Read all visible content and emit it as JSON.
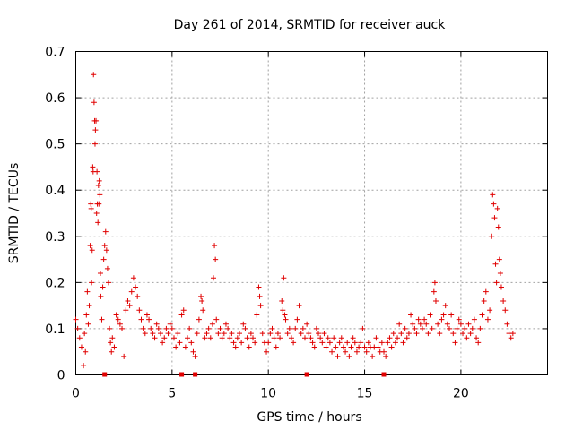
{
  "chart_data": {
    "type": "scatter",
    "title": "Day 261 of 2014, SRMTID for receiver auck",
    "xlabel": "GPS time / hours",
    "ylabel": "SRMTID / TECUs",
    "xlim": [
      0,
      24.5
    ],
    "ylim": [
      0,
      0.7
    ],
    "xticks": [
      "0",
      "5",
      "10",
      "15",
      "20"
    ],
    "yticks": [
      "0",
      "0.1",
      "0.2",
      "0.3",
      "0.4",
      "0.5",
      "0.6",
      "0.7"
    ],
    "grid": true,
    "marker": "plus",
    "color": "#e00000",
    "series": [
      {
        "name": "SRMTID",
        "points": [
          [
            0.0,
            0.12
          ],
          [
            0.1,
            0.1
          ],
          [
            0.2,
            0.08
          ],
          [
            0.3,
            0.06
          ],
          [
            0.4,
            0.02
          ],
          [
            0.45,
            0.09
          ],
          [
            0.5,
            0.05
          ],
          [
            0.55,
            0.13
          ],
          [
            0.6,
            0.18
          ],
          [
            0.65,
            0.11
          ],
          [
            0.7,
            0.15
          ],
          [
            0.75,
            0.28
          ],
          [
            0.78,
            0.37
          ],
          [
            0.8,
            0.36
          ],
          [
            0.82,
            0.2
          ],
          [
            0.85,
            0.27
          ],
          [
            0.88,
            0.45
          ],
          [
            0.9,
            0.44
          ],
          [
            0.92,
            0.65
          ],
          [
            0.95,
            0.59
          ],
          [
            0.98,
            0.55
          ],
          [
            1.0,
            0.5
          ],
          [
            1.02,
            0.53
          ],
          [
            1.05,
            0.55
          ],
          [
            1.08,
            0.35
          ],
          [
            1.1,
            0.44
          ],
          [
            1.12,
            0.37
          ],
          [
            1.15,
            0.33
          ],
          [
            1.18,
            0.41
          ],
          [
            1.2,
            0.37
          ],
          [
            1.22,
            0.42
          ],
          [
            1.25,
            0.39
          ],
          [
            1.28,
            0.22
          ],
          [
            1.3,
            0.17
          ],
          [
            1.35,
            0.12
          ],
          [
            1.4,
            0.19
          ],
          [
            1.45,
            0.25
          ],
          [
            1.5,
            0.28
          ],
          [
            1.55,
            0.31
          ],
          [
            1.6,
            0.27
          ],
          [
            1.65,
            0.23
          ],
          [
            1.7,
            0.2
          ],
          [
            1.75,
            0.1
          ],
          [
            1.8,
            0.07
          ],
          [
            1.85,
            0.05
          ],
          [
            1.9,
            0.08
          ],
          [
            2.0,
            0.06
          ],
          [
            2.1,
            0.13
          ],
          [
            2.2,
            0.12
          ],
          [
            2.3,
            0.11
          ],
          [
            2.4,
            0.1
          ],
          [
            2.5,
            0.04
          ],
          [
            2.6,
            0.14
          ],
          [
            2.7,
            0.16
          ],
          [
            2.8,
            0.15
          ],
          [
            2.9,
            0.18
          ],
          [
            3.0,
            0.21
          ],
          [
            3.1,
            0.19
          ],
          [
            3.2,
            0.17
          ],
          [
            3.3,
            0.14
          ],
          [
            3.4,
            0.12
          ],
          [
            3.5,
            0.1
          ],
          [
            3.6,
            0.09
          ],
          [
            3.7,
            0.13
          ],
          [
            3.8,
            0.12
          ],
          [
            3.9,
            0.1
          ],
          [
            4.0,
            0.09
          ],
          [
            4.1,
            0.08
          ],
          [
            4.2,
            0.11
          ],
          [
            4.3,
            0.1
          ],
          [
            4.4,
            0.09
          ],
          [
            4.5,
            0.07
          ],
          [
            4.6,
            0.08
          ],
          [
            4.7,
            0.1
          ],
          [
            4.8,
            0.09
          ],
          [
            4.9,
            0.11
          ],
          [
            5.0,
            0.1
          ],
          [
            5.1,
            0.08
          ],
          [
            5.2,
            0.06
          ],
          [
            5.3,
            0.09
          ],
          [
            5.4,
            0.07
          ],
          [
            5.5,
            0.13
          ],
          [
            5.6,
            0.14
          ],
          [
            5.7,
            0.06
          ],
          [
            5.8,
            0.08
          ],
          [
            5.9,
            0.1
          ],
          [
            6.0,
            0.07
          ],
          [
            6.1,
            0.05
          ],
          [
            6.2,
            0.04
          ],
          [
            6.3,
            0.09
          ],
          [
            6.4,
            0.12
          ],
          [
            6.5,
            0.17
          ],
          [
            6.55,
            0.16
          ],
          [
            6.6,
            0.14
          ],
          [
            6.7,
            0.08
          ],
          [
            6.8,
            0.09
          ],
          [
            6.9,
            0.1
          ],
          [
            7.0,
            0.08
          ],
          [
            7.1,
            0.11
          ],
          [
            7.15,
            0.21
          ],
          [
            7.2,
            0.28
          ],
          [
            7.25,
            0.25
          ],
          [
            7.3,
            0.12
          ],
          [
            7.4,
            0.09
          ],
          [
            7.5,
            0.1
          ],
          [
            7.6,
            0.08
          ],
          [
            7.7,
            0.09
          ],
          [
            7.8,
            0.11
          ],
          [
            7.9,
            0.1
          ],
          [
            8.0,
            0.08
          ],
          [
            8.1,
            0.09
          ],
          [
            8.2,
            0.07
          ],
          [
            8.3,
            0.06
          ],
          [
            8.4,
            0.08
          ],
          [
            8.5,
            0.09
          ],
          [
            8.6,
            0.07
          ],
          [
            8.7,
            0.11
          ],
          [
            8.8,
            0.1
          ],
          [
            8.9,
            0.08
          ],
          [
            9.0,
            0.06
          ],
          [
            9.1,
            0.09
          ],
          [
            9.2,
            0.08
          ],
          [
            9.3,
            0.07
          ],
          [
            9.4,
            0.13
          ],
          [
            9.5,
            0.19
          ],
          [
            9.55,
            0.17
          ],
          [
            9.6,
            0.15
          ],
          [
            9.7,
            0.09
          ],
          [
            9.8,
            0.07
          ],
          [
            9.9,
            0.05
          ],
          [
            10.0,
            0.07
          ],
          [
            10.1,
            0.09
          ],
          [
            10.2,
            0.1
          ],
          [
            10.3,
            0.08
          ],
          [
            10.4,
            0.06
          ],
          [
            10.5,
            0.09
          ],
          [
            10.6,
            0.08
          ],
          [
            10.7,
            0.16
          ],
          [
            10.75,
            0.14
          ],
          [
            10.8,
            0.21
          ],
          [
            10.85,
            0.13
          ],
          [
            10.9,
            0.12
          ],
          [
            11.0,
            0.09
          ],
          [
            11.1,
            0.1
          ],
          [
            11.2,
            0.08
          ],
          [
            11.3,
            0.07
          ],
          [
            11.4,
            0.1
          ],
          [
            11.5,
            0.12
          ],
          [
            11.6,
            0.15
          ],
          [
            11.7,
            0.09
          ],
          [
            11.8,
            0.1
          ],
          [
            11.9,
            0.08
          ],
          [
            12.0,
            0.11
          ],
          [
            12.1,
            0.09
          ],
          [
            12.2,
            0.08
          ],
          [
            12.3,
            0.07
          ],
          [
            12.4,
            0.06
          ],
          [
            12.5,
            0.1
          ],
          [
            12.6,
            0.09
          ],
          [
            12.7,
            0.08
          ],
          [
            12.8,
            0.07
          ],
          [
            12.9,
            0.09
          ],
          [
            13.0,
            0.06
          ],
          [
            13.1,
            0.08
          ],
          [
            13.2,
            0.07
          ],
          [
            13.3,
            0.05
          ],
          [
            13.4,
            0.08
          ],
          [
            13.5,
            0.06
          ],
          [
            13.6,
            0.04
          ],
          [
            13.7,
            0.07
          ],
          [
            13.8,
            0.08
          ],
          [
            13.9,
            0.06
          ],
          [
            14.0,
            0.05
          ],
          [
            14.1,
            0.07
          ],
          [
            14.2,
            0.04
          ],
          [
            14.3,
            0.06
          ],
          [
            14.4,
            0.08
          ],
          [
            14.5,
            0.07
          ],
          [
            14.6,
            0.05
          ],
          [
            14.7,
            0.06
          ],
          [
            14.8,
            0.07
          ],
          [
            14.9,
            0.1
          ],
          [
            15.0,
            0.06
          ],
          [
            15.1,
            0.05
          ],
          [
            15.2,
            0.07
          ],
          [
            15.3,
            0.06
          ],
          [
            15.4,
            0.04
          ],
          [
            15.5,
            0.06
          ],
          [
            15.6,
            0.08
          ],
          [
            15.7,
            0.06
          ],
          [
            15.8,
            0.05
          ],
          [
            15.9,
            0.07
          ],
          [
            16.0,
            0.05
          ],
          [
            16.1,
            0.04
          ],
          [
            16.2,
            0.07
          ],
          [
            16.3,
            0.08
          ],
          [
            16.4,
            0.06
          ],
          [
            16.5,
            0.09
          ],
          [
            16.6,
            0.07
          ],
          [
            16.7,
            0.08
          ],
          [
            16.8,
            0.11
          ],
          [
            16.9,
            0.09
          ],
          [
            17.0,
            0.07
          ],
          [
            17.1,
            0.1
          ],
          [
            17.2,
            0.08
          ],
          [
            17.3,
            0.09
          ],
          [
            17.4,
            0.13
          ],
          [
            17.5,
            0.11
          ],
          [
            17.6,
            0.1
          ],
          [
            17.7,
            0.09
          ],
          [
            17.8,
            0.12
          ],
          [
            17.9,
            0.11
          ],
          [
            18.0,
            0.1
          ],
          [
            18.1,
            0.12
          ],
          [
            18.2,
            0.11
          ],
          [
            18.3,
            0.09
          ],
          [
            18.4,
            0.13
          ],
          [
            18.5,
            0.1
          ],
          [
            18.6,
            0.18
          ],
          [
            18.65,
            0.2
          ],
          [
            18.7,
            0.16
          ],
          [
            18.8,
            0.11
          ],
          [
            18.9,
            0.09
          ],
          [
            19.0,
            0.12
          ],
          [
            19.1,
            0.13
          ],
          [
            19.2,
            0.15
          ],
          [
            19.3,
            0.11
          ],
          [
            19.4,
            0.1
          ],
          [
            19.5,
            0.13
          ],
          [
            19.6,
            0.09
          ],
          [
            19.7,
            0.07
          ],
          [
            19.8,
            0.1
          ],
          [
            19.9,
            0.12
          ],
          [
            20.0,
            0.11
          ],
          [
            20.1,
            0.09
          ],
          [
            20.2,
            0.1
          ],
          [
            20.3,
            0.08
          ],
          [
            20.4,
            0.11
          ],
          [
            20.5,
            0.09
          ],
          [
            20.6,
            0.1
          ],
          [
            20.7,
            0.12
          ],
          [
            20.8,
            0.08
          ],
          [
            20.9,
            0.07
          ],
          [
            21.0,
            0.1
          ],
          [
            21.1,
            0.13
          ],
          [
            21.2,
            0.16
          ],
          [
            21.3,
            0.18
          ],
          [
            21.4,
            0.12
          ],
          [
            21.5,
            0.14
          ],
          [
            21.6,
            0.3
          ],
          [
            21.65,
            0.39
          ],
          [
            21.7,
            0.37
          ],
          [
            21.75,
            0.34
          ],
          [
            21.8,
            0.24
          ],
          [
            21.85,
            0.2
          ],
          [
            21.9,
            0.36
          ],
          [
            21.95,
            0.32
          ],
          [
            22.0,
            0.25
          ],
          [
            22.05,
            0.22
          ],
          [
            22.1,
            0.19
          ],
          [
            22.2,
            0.16
          ],
          [
            22.3,
            0.14
          ],
          [
            22.4,
            0.11
          ],
          [
            22.5,
            0.09
          ],
          [
            22.6,
            0.08
          ],
          [
            22.7,
            0.09
          ]
        ]
      }
    ],
    "axis_markers_x": [
      1.5,
      5.5,
      6.2,
      12.0,
      16.0
    ]
  }
}
